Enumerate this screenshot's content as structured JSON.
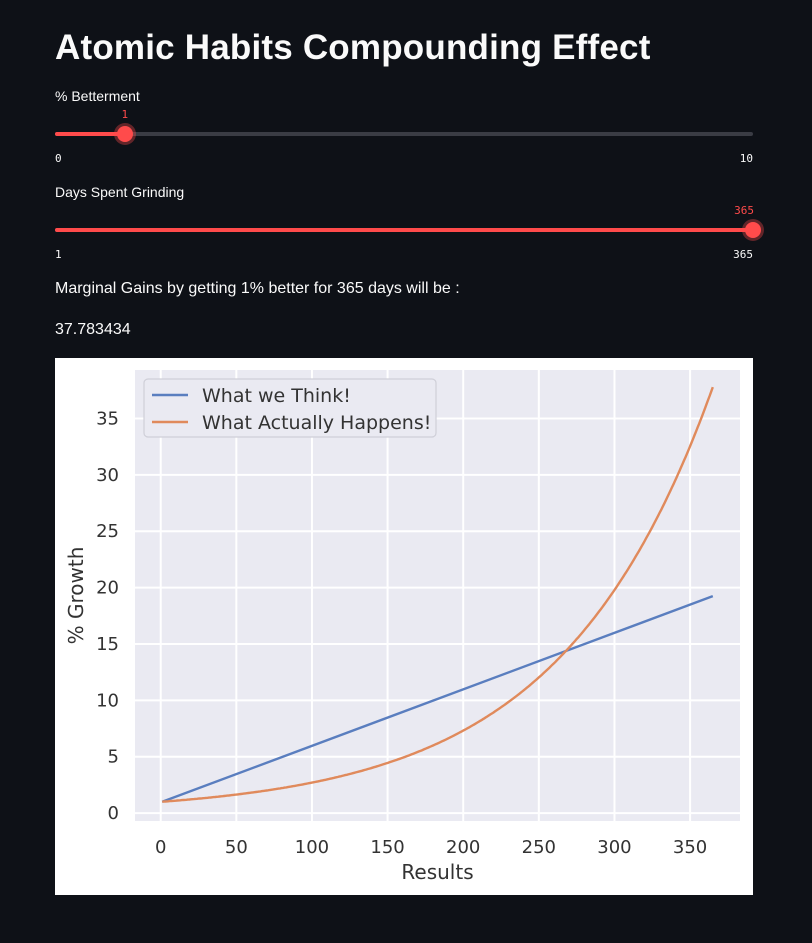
{
  "header": {
    "title": "Atomic Habits Compounding Effect"
  },
  "betterment_slider": {
    "label": "% Betterment",
    "value": 1,
    "min": 0,
    "max": 10,
    "value_text": "1",
    "min_text": "0",
    "max_text": "10"
  },
  "days_slider": {
    "label": "Days Spent Grinding",
    "value": 365,
    "min": 1,
    "max": 365,
    "value_text": "365",
    "min_text": "1",
    "max_text": "365"
  },
  "result": {
    "sentence": "Marginal Gains by getting 1% better for 365 days will be :",
    "value": "37.783434"
  },
  "colors": {
    "accent": "#ff4b4b",
    "background": "#0e1117",
    "series_linear": "#5a7ebf",
    "series_compound": "#e08a5c",
    "plot_bg": "#eaeaf2"
  },
  "chart_data": {
    "type": "line",
    "xlabel": "Results",
    "ylabel": "% Growth",
    "xlim": [
      -17,
      383
    ],
    "ylim": [
      -0.7,
      39.3
    ],
    "xticks": [
      0,
      50,
      100,
      150,
      200,
      250,
      300,
      350
    ],
    "yticks": [
      0,
      5,
      10,
      15,
      20,
      25,
      30,
      35
    ],
    "grid": true,
    "legend": "upper left",
    "series": [
      {
        "name": "What we Think!",
        "formula": "linear",
        "x_start": 1,
        "x_end": 365,
        "y_start": 1.0,
        "y_end": 19.25
      },
      {
        "name": "What Actually Happens!",
        "formula": "1.01^x",
        "x_start": 1,
        "x_end": 365,
        "y_start": 1.01,
        "y_end": 37.783434
      }
    ]
  }
}
